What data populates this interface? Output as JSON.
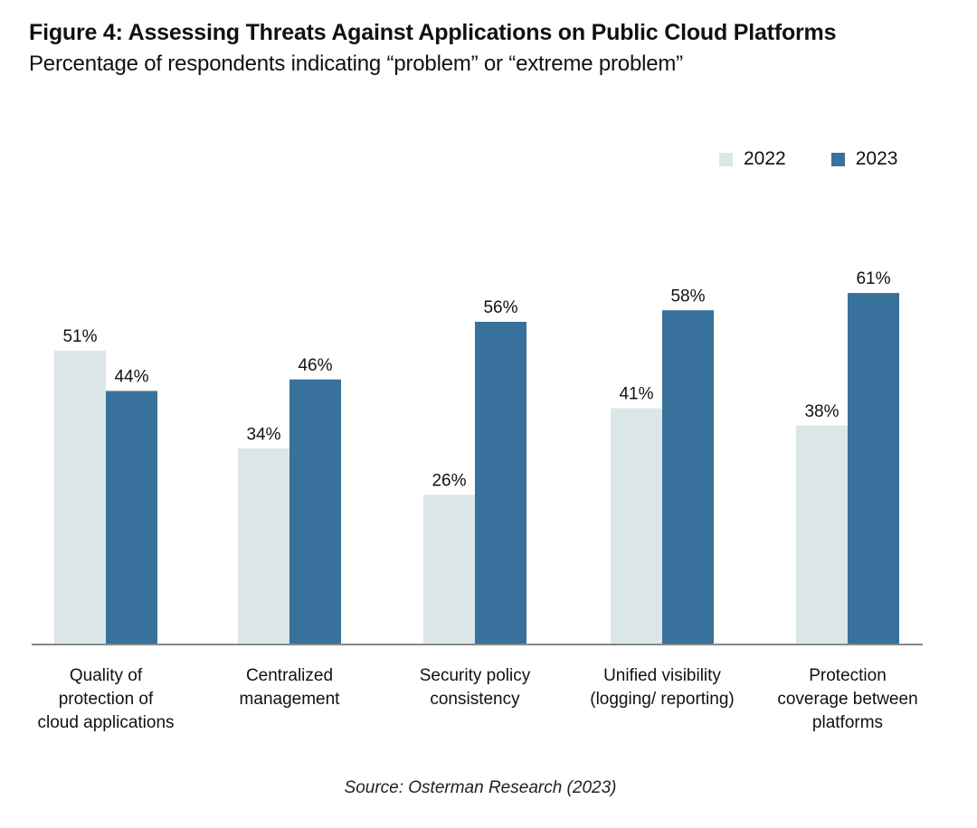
{
  "header": {
    "title": "Figure 4: Assessing Threats Against Applications on Public Cloud Platforms",
    "subtitle": "Percentage of respondents indicating “problem” or “extreme problem”"
  },
  "source": "Source: Osterman Research (2023)",
  "colors": {
    "2022": "#dbe6e8",
    "2023": "#38719b",
    "axis": "#888888"
  },
  "chart_data": {
    "type": "bar",
    "title": "Figure 4: Assessing Threats Against Applications on Public Cloud Platforms",
    "subtitle": "Percentage of respondents indicating “problem” or “extreme problem”",
    "xlabel": "",
    "ylabel": "",
    "ylim": [
      0,
      64
    ],
    "grid": false,
    "legend_position": "top-right",
    "categories": [
      [
        "Quality of",
        "protection of",
        "cloud applications"
      ],
      [
        "Centralized",
        "management"
      ],
      [
        "Security policy",
        "consistency"
      ],
      [
        "Unified visibility",
        "(logging/ reporting)"
      ],
      [
        "Protection",
        "coverage between",
        "platforms"
      ]
    ],
    "series": [
      {
        "name": "2022",
        "values": [
          51,
          34,
          26,
          41,
          38
        ],
        "labels": [
          "51%",
          "34%",
          "26%",
          "41%",
          "38%"
        ]
      },
      {
        "name": "2023",
        "values": [
          44,
          46,
          56,
          58,
          61
        ],
        "labels": [
          "44%",
          "46%",
          "56%",
          "58%",
          "61%"
        ]
      }
    ]
  }
}
